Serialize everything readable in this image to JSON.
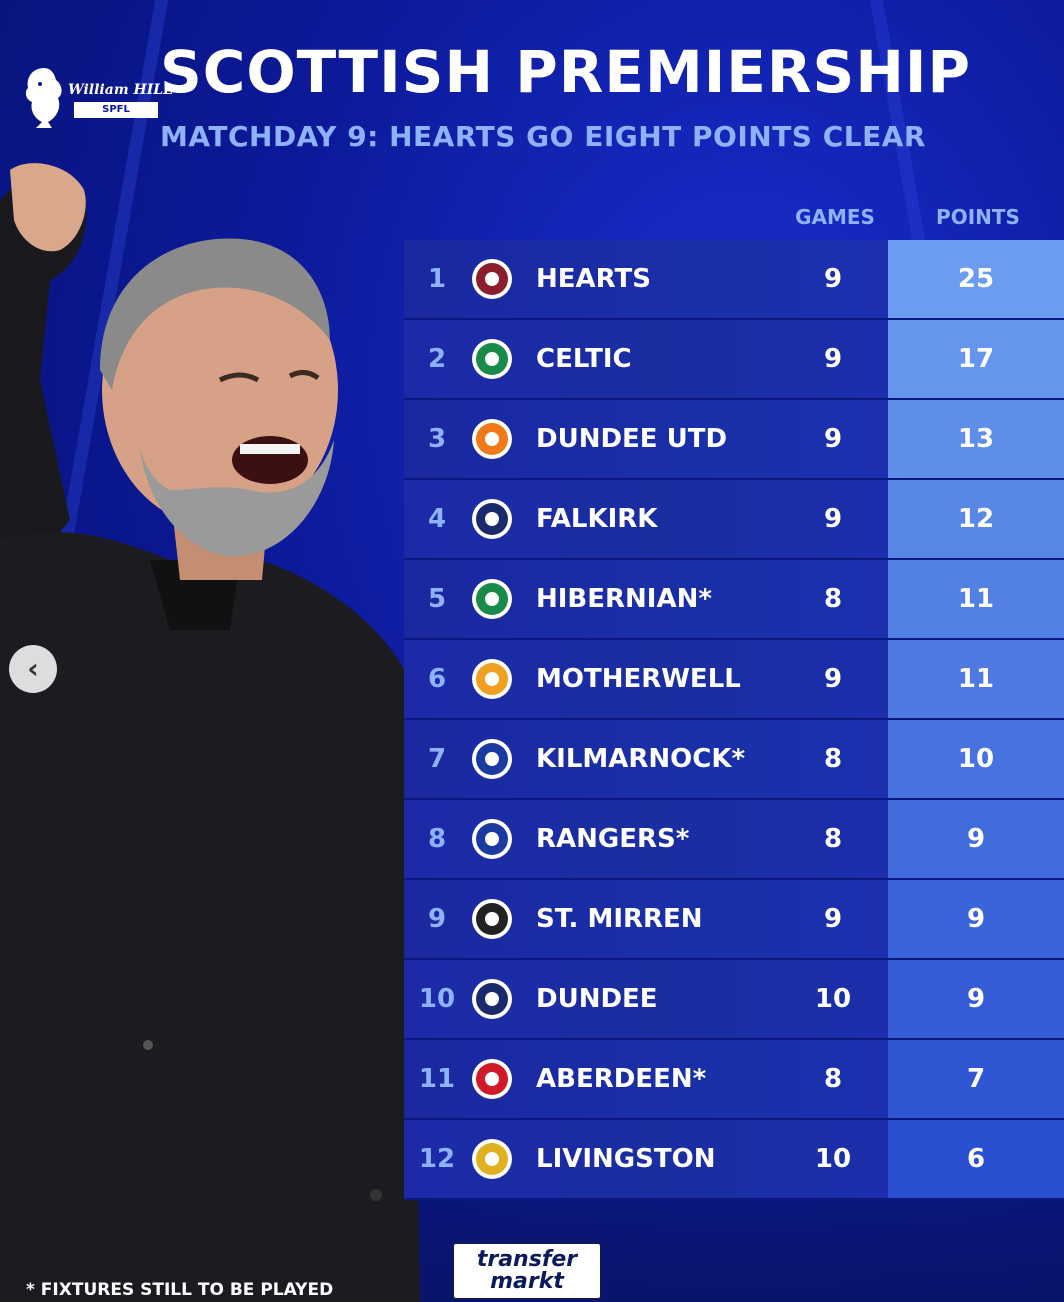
{
  "header": {
    "title": "SCOTTISH PREMIERSHIP",
    "subtitle": "MATCHDAY 9: HEARTS GO EIGHT POINTS CLEAR"
  },
  "league_logo": {
    "brand": "William HILL",
    "label": "SPFL"
  },
  "table": {
    "columns": {
      "games": "GAMES",
      "points": "POINTS"
    },
    "rows": [
      {
        "pos": "1",
        "team": "HEARTS",
        "games": "9",
        "points": "25",
        "crest": "hearts-crest-icon",
        "crest_color": "#8b1d2c"
      },
      {
        "pos": "2",
        "team": "CELTIC",
        "games": "9",
        "points": "17",
        "crest": "celtic-crest-icon",
        "crest_color": "#1a8a4a"
      },
      {
        "pos": "3",
        "team": "DUNDEE UTD",
        "games": "9",
        "points": "13",
        "crest": "dundee-utd-crest-icon",
        "crest_color": "#f07a1a"
      },
      {
        "pos": "4",
        "team": "FALKIRK",
        "games": "9",
        "points": "12",
        "crest": "falkirk-crest-icon",
        "crest_color": "#1a2a6a"
      },
      {
        "pos": "5",
        "team": "HIBERNIAN*",
        "games": "8",
        "points": "11",
        "crest": "hibernian-crest-icon",
        "crest_color": "#1a8a4a"
      },
      {
        "pos": "6",
        "team": "MOTHERWELL",
        "games": "9",
        "points": "11",
        "crest": "motherwell-crest-icon",
        "crest_color": "#f0a020"
      },
      {
        "pos": "7",
        "team": "KILMARNOCK*",
        "games": "8",
        "points": "10",
        "crest": "kilmarnock-crest-icon",
        "crest_color": "#1a3aa0"
      },
      {
        "pos": "8",
        "team": "RANGERS*",
        "games": "8",
        "points": "9",
        "crest": "rangers-crest-icon",
        "crest_color": "#1a3aa0"
      },
      {
        "pos": "9",
        "team": "ST. MIRREN",
        "games": "9",
        "points": "9",
        "crest": "st-mirren-crest-icon",
        "crest_color": "#222222"
      },
      {
        "pos": "10",
        "team": "DUNDEE",
        "games": "10",
        "points": "9",
        "crest": "dundee-crest-icon",
        "crest_color": "#1a2a6a"
      },
      {
        "pos": "11",
        "team": "ABERDEEN*",
        "games": "8",
        "points": "7",
        "crest": "aberdeen-crest-icon",
        "crest_color": "#d01a2a"
      },
      {
        "pos": "12",
        "team": "LIVINGSTON",
        "games": "10",
        "points": "6",
        "crest": "livingston-crest-icon",
        "crest_color": "#e0b020"
      }
    ]
  },
  "footnote": "* FIXTURES STILL TO BE PLAYED",
  "source_logo": {
    "line1": "transfer",
    "line2": "markt"
  },
  "colors": {
    "background": "#0c1a9a",
    "accent_text": "#8fb2ff",
    "points_top": "#6b9cf0",
    "points_bottom": "#2a4fd0"
  }
}
